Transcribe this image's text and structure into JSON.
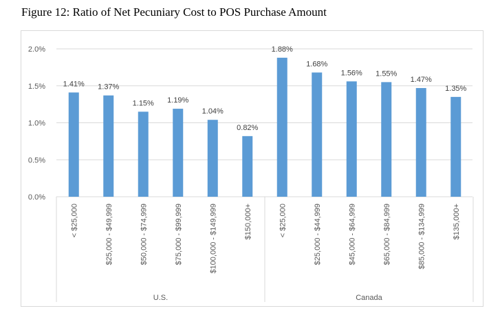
{
  "figure_title": "Figure 12: Ratio of Net Pecuniary Cost to POS Purchase Amount",
  "colors": {
    "bar": "#5b9bd5",
    "gridline": "#d9d9d9",
    "axis_text": "#595959",
    "label_text": "#404040"
  },
  "chart_data": {
    "type": "bar",
    "title": "",
    "xlabel": "",
    "ylabel": "",
    "ylim": [
      0,
      2
    ],
    "y_ticks": [
      0,
      0.5,
      1.0,
      1.5,
      2.0
    ],
    "y_tick_labels": [
      "0.0%",
      "0.5%",
      "1.0%",
      "1.5%",
      "2.0%"
    ],
    "grid": true,
    "groups": [
      {
        "name": "U.S.",
        "categories": [
          "< $25,000",
          "$25,000 - $49,999",
          "$50,000 - $74,999",
          "$75,000 - $99,999",
          "$100,000 - $149,999",
          "$150,000+"
        ],
        "values": [
          1.41,
          1.37,
          1.15,
          1.19,
          1.04,
          0.82
        ],
        "labels": [
          "1.41%",
          "1.37%",
          "1.15%",
          "1.19%",
          "1.04%",
          "0.82%"
        ]
      },
      {
        "name": "Canada",
        "categories": [
          "< $25,000",
          "$25,000 - $44,999",
          "$45,000 - $64,999",
          "$65,000 - $84,999",
          "$85,000 - $134,999",
          "$135,000+"
        ],
        "values": [
          1.88,
          1.68,
          1.56,
          1.55,
          1.47,
          1.35
        ],
        "labels": [
          "1.88%",
          "1.68%",
          "1.56%",
          "1.55%",
          "1.47%",
          "1.35%"
        ]
      }
    ]
  }
}
